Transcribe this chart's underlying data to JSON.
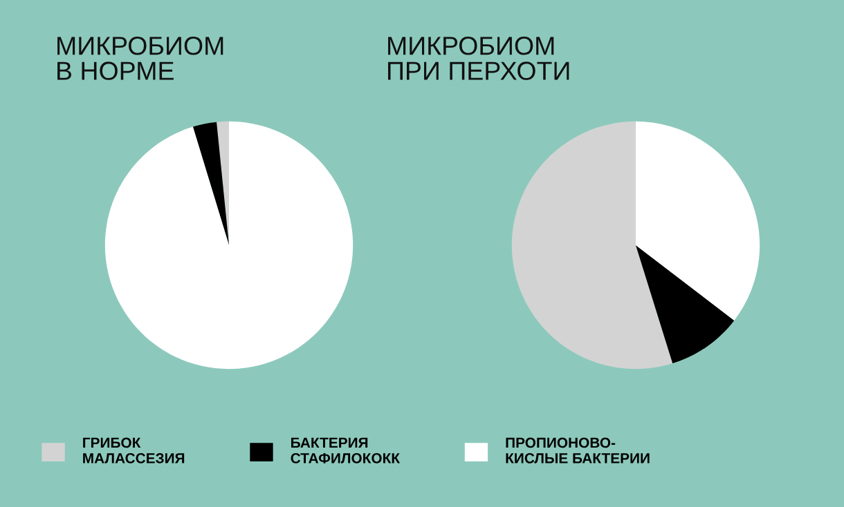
{
  "chart_data": [
    {
      "type": "pie",
      "title": "МИКРОБИОМ\nВ НОРМЕ",
      "categories": [
        "ГРИБОК\nМАЛАССЕЗИЯ",
        "БАКТЕРИЯ\nСТАФИЛОКОКК",
        "ПРОПИОНОВО-\nКИСЛЫЕ БАКТЕРИИ"
      ],
      "values": [
        1.6,
        3.1,
        95.3
      ],
      "colors": [
        "#d3d3d3",
        "#000000",
        "#ffffff"
      ],
      "legend": "bottom"
    },
    {
      "type": "pie",
      "title": "МИКРОБИОМ\nПРИ ПЕРХОТИ",
      "categories": [
        null,
        null,
        null
      ],
      "values": [
        54.8,
        9.8,
        35.4
      ],
      "colors": [
        "#d3d3d3",
        "#000000",
        "#ffffff"
      ]
    }
  ]
}
